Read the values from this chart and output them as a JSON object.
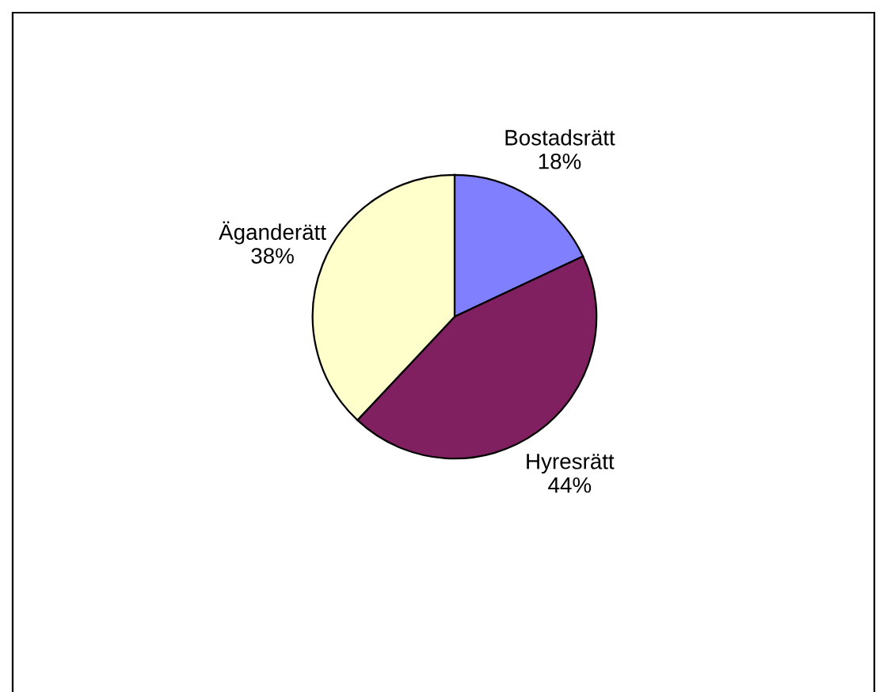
{
  "chart_data": {
    "type": "pie",
    "categories": [
      "Bostadsrätt",
      "Hyresrätt",
      "Äganderätt"
    ],
    "values": [
      18,
      44,
      38
    ],
    "value_labels": [
      "18%",
      "44%",
      "38%"
    ],
    "colors": [
      "#8080ff",
      "#802060",
      "#ffffcc"
    ],
    "legend": false
  }
}
